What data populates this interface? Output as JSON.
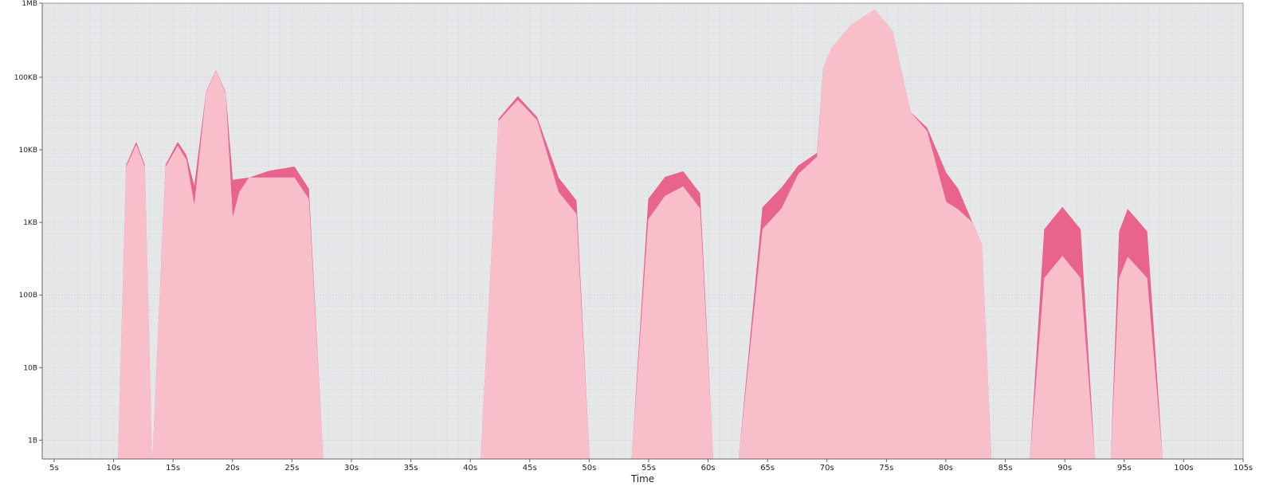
{
  "chart_data": {
    "type": "area",
    "title": "",
    "xlabel": "Time",
    "ylabel": "",
    "xlim": [
      4,
      105
    ],
    "ylim": [
      0.55,
      1048576
    ],
    "yscale": "log",
    "grid": true,
    "legend": "none",
    "x_ticks": [
      5,
      10,
      15,
      20,
      25,
      30,
      35,
      40,
      45,
      50,
      55,
      60,
      65,
      70,
      75,
      80,
      85,
      90,
      95,
      100,
      105
    ],
    "x_tick_labels": [
      "5s",
      "10s",
      "15s",
      "20s",
      "25s",
      "30s",
      "35s",
      "40s",
      "45s",
      "50s",
      "55s",
      "60s",
      "65s",
      "70s",
      "75s",
      "80s",
      "85s",
      "90s",
      "95s",
      "100s",
      "105s"
    ],
    "y_ticks": [
      1,
      10,
      100,
      1000,
      10000,
      100000,
      1048576
    ],
    "y_tick_labels": [
      "1B",
      "10B",
      "100B",
      "1KB",
      "10KB",
      "100KB",
      "1MB"
    ],
    "colors": {
      "background": "#e6e7e9",
      "grid": "#d2d4d8",
      "lower": "#f8bfcb",
      "upper": "#e8648c",
      "axis": "#666666"
    },
    "series": [
      {
        "segments": [
          [
            [
              10.4,
              0.55
            ],
            [
              11.1,
              5800
            ],
            [
              11.9,
              11500
            ],
            [
              12.6,
              5800
            ],
            [
              13.2,
              0.55
            ]
          ],
          [
            [
              13.3,
              0.55
            ],
            [
              14.4,
              5800
            ],
            [
              15.4,
              11200
            ],
            [
              16.1,
              7200
            ],
            [
              16.8,
              1600
            ],
            [
              17.8,
              60000
            ],
            [
              18.6,
              120000
            ],
            [
              19.4,
              60000
            ],
            [
              20.0,
              1100
            ],
            [
              20.6,
              2600
            ],
            [
              21.4,
              4100
            ],
            [
              23.1,
              4100
            ],
            [
              25.2,
              4100
            ],
            [
              26.4,
              2100
            ],
            [
              27.6,
              0.55
            ]
          ],
          [
            [
              40.9,
              0.55
            ],
            [
              42.4,
              25000
            ],
            [
              44.0,
              48000
            ],
            [
              45.6,
              25500
            ],
            [
              47.4,
              2600
            ],
            [
              48.9,
              1300
            ],
            [
              50.0,
              0.55
            ]
          ],
          [
            [
              53.6,
              0.55
            ],
            [
              55.0,
              1100
            ],
            [
              56.4,
              2300
            ],
            [
              57.9,
              3100
            ],
            [
              59.3,
              1550
            ],
            [
              60.4,
              0.55
            ]
          ],
          [
            [
              62.6,
              0.55
            ],
            [
              64.6,
              800
            ],
            [
              66.2,
              1550
            ],
            [
              67.6,
              4600
            ],
            [
              69.2,
              8000
            ],
            [
              69.7,
              130000
            ],
            [
              70.4,
              250000
            ],
            [
              72.1,
              530000
            ],
            [
              74.0,
              850000
            ],
            [
              75.5,
              430000
            ],
            [
              77.0,
              33000
            ],
            [
              78.4,
              18000
            ],
            [
              80.0,
              1900
            ],
            [
              81.0,
              1500
            ],
            [
              82.2,
              1000
            ],
            [
              83.0,
              500
            ],
            [
              83.8,
              0.55
            ]
          ],
          [
            [
              87.1,
              0.55
            ],
            [
              88.3,
              170
            ],
            [
              89.8,
              340
            ],
            [
              91.3,
              170
            ],
            [
              92.5,
              0.55
            ]
          ],
          [
            [
              93.9,
              0.55
            ],
            [
              94.6,
              170
            ],
            [
              95.3,
              330
            ],
            [
              96.9,
              170
            ],
            [
              98.2,
              0.55
            ]
          ]
        ]
      },
      {
        "segments": [
          [
            [
              10.4,
              0.55
            ],
            [
              11.1,
              6200
            ],
            [
              11.9,
              12500
            ],
            [
              12.6,
              6200
            ],
            [
              13.2,
              0.55
            ]
          ],
          [
            [
              13.3,
              0.55
            ],
            [
              14.4,
              6200
            ],
            [
              15.4,
              12600
            ],
            [
              16.1,
              8400
            ],
            [
              16.8,
              3000
            ],
            [
              17.8,
              62000
            ],
            [
              18.6,
              122000
            ],
            [
              19.4,
              62000
            ],
            [
              20.0,
              3800
            ],
            [
              21.4,
              4100
            ],
            [
              23.1,
              5100
            ],
            [
              25.2,
              5800
            ],
            [
              26.4,
              2900
            ],
            [
              27.6,
              0.55
            ]
          ],
          [
            [
              40.9,
              0.55
            ],
            [
              42.4,
              26500
            ],
            [
              44.0,
              54000
            ],
            [
              45.6,
              28000
            ],
            [
              47.4,
              4100
            ],
            [
              48.9,
              2000
            ],
            [
              50.0,
              0.55
            ]
          ],
          [
            [
              53.6,
              0.55
            ],
            [
              55.0,
              2100
            ],
            [
              56.4,
              4200
            ],
            [
              57.9,
              5000
            ],
            [
              59.3,
              2500
            ],
            [
              60.4,
              0.55
            ]
          ],
          [
            [
              62.6,
              0.55
            ],
            [
              64.6,
              1600
            ],
            [
              66.2,
              3000
            ],
            [
              67.6,
              6000
            ],
            [
              69.2,
              9000
            ],
            [
              69.7,
              130000
            ],
            [
              70.4,
              250000
            ],
            [
              72.1,
              530000
            ],
            [
              74.0,
              850000
            ],
            [
              75.5,
              430000
            ],
            [
              77.0,
              33000
            ],
            [
              78.4,
              20000
            ],
            [
              80.0,
              4800
            ],
            [
              81.0,
              2900
            ],
            [
              82.2,
              1000
            ],
            [
              83.0,
              500
            ],
            [
              83.8,
              0.55
            ]
          ],
          [
            [
              87.1,
              0.55
            ],
            [
              88.3,
              800
            ],
            [
              89.8,
              1600
            ],
            [
              91.3,
              800
            ],
            [
              92.5,
              0.55
            ]
          ],
          [
            [
              93.9,
              0.55
            ],
            [
              94.6,
              750
            ],
            [
              95.3,
              1500
            ],
            [
              96.9,
              750
            ],
            [
              98.2,
              0.55
            ]
          ]
        ]
      }
    ]
  }
}
